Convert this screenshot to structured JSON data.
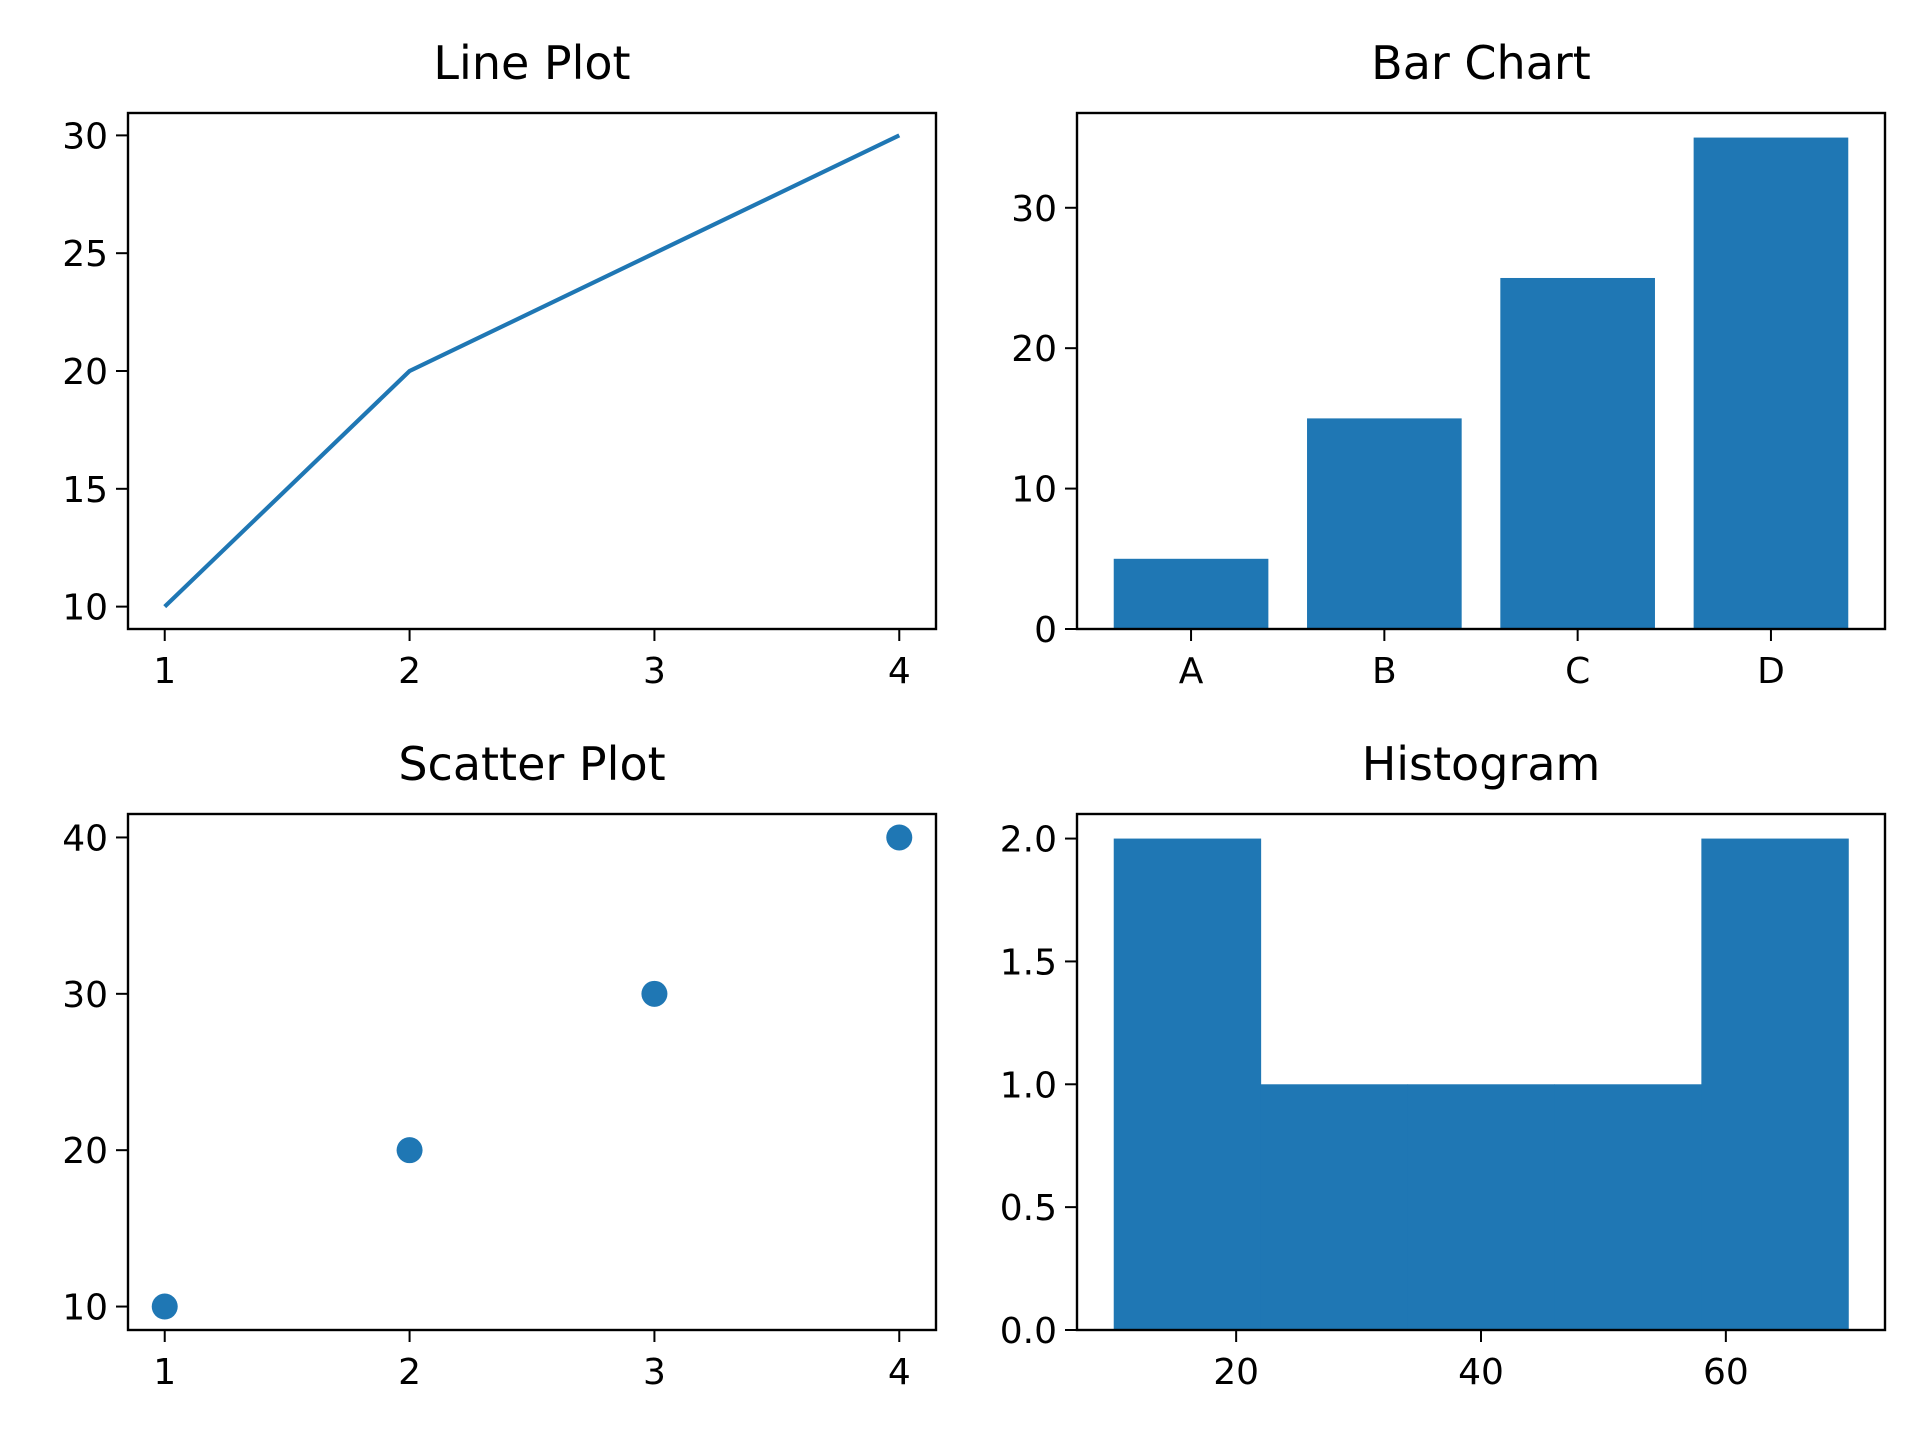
{
  "chart_data": [
    {
      "id": "line",
      "type": "line",
      "title": "Line Plot",
      "x": [
        1,
        2,
        3,
        4
      ],
      "y": [
        10,
        20,
        25,
        30
      ],
      "xlim": [
        0.85,
        4.15
      ],
      "ylim": [
        9.05,
        30.95
      ],
      "xticks": [
        1,
        2,
        3,
        4
      ],
      "yticks": [
        10,
        15,
        20,
        25,
        30
      ],
      "grid": false,
      "color": "#1f77b4"
    },
    {
      "id": "bar",
      "type": "bar",
      "title": "Bar Chart",
      "categories": [
        "A",
        "B",
        "C",
        "D"
      ],
      "values": [
        5,
        15,
        25,
        35
      ],
      "ylim": [
        0,
        36.75
      ],
      "yticks": [
        0,
        10,
        20,
        30
      ],
      "grid": false,
      "color": "#1f77b4"
    },
    {
      "id": "scatter",
      "type": "scatter",
      "title": "Scatter Plot",
      "x": [
        1,
        2,
        3,
        4
      ],
      "y": [
        10,
        20,
        30,
        40
      ],
      "xlim": [
        0.85,
        4.15
      ],
      "ylim": [
        8.5,
        41.5
      ],
      "xticks": [
        1,
        2,
        3,
        4
      ],
      "yticks": [
        10,
        20,
        30,
        40
      ],
      "grid": false,
      "color": "#1f77b4"
    },
    {
      "id": "hist",
      "type": "bar",
      "title": "Histogram",
      "bin_edges": [
        10,
        22,
        34,
        46,
        58,
        70
      ],
      "counts": [
        2,
        1,
        1,
        1,
        2
      ],
      "xlim": [
        7,
        73
      ],
      "ylim": [
        0,
        2.1
      ],
      "xticks": [
        20,
        40,
        60
      ],
      "yticks": [
        "0.0",
        "0.5",
        "1.0",
        "1.5",
        "2.0"
      ],
      "grid": false,
      "color": "#1f77b4"
    }
  ]
}
